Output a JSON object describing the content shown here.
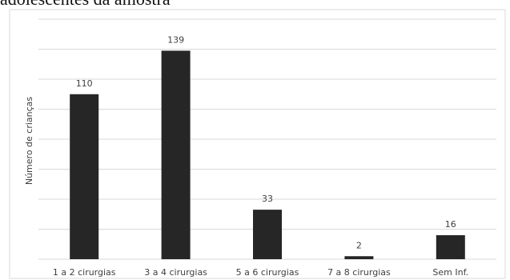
{
  "heading": "adolescentes da amostra",
  "chart_data": {
    "type": "bar",
    "title": "",
    "xlabel": "",
    "ylabel": "Número de crianças",
    "categories": [
      "1 a 2 cirurgias",
      "3 a 4 cirurgias",
      "5 a 6 cirurgias",
      "7 a 8 cirurgias",
      "Sem Inf."
    ],
    "values": [
      110,
      139,
      33,
      2,
      16
    ],
    "data_labels": [
      "110",
      "139",
      "33",
      "2",
      "16"
    ],
    "ylim": [
      0,
      160
    ],
    "grid": true,
    "legend": "none",
    "bar_color": "#262626",
    "grid_color": "#d9d9d9"
  }
}
